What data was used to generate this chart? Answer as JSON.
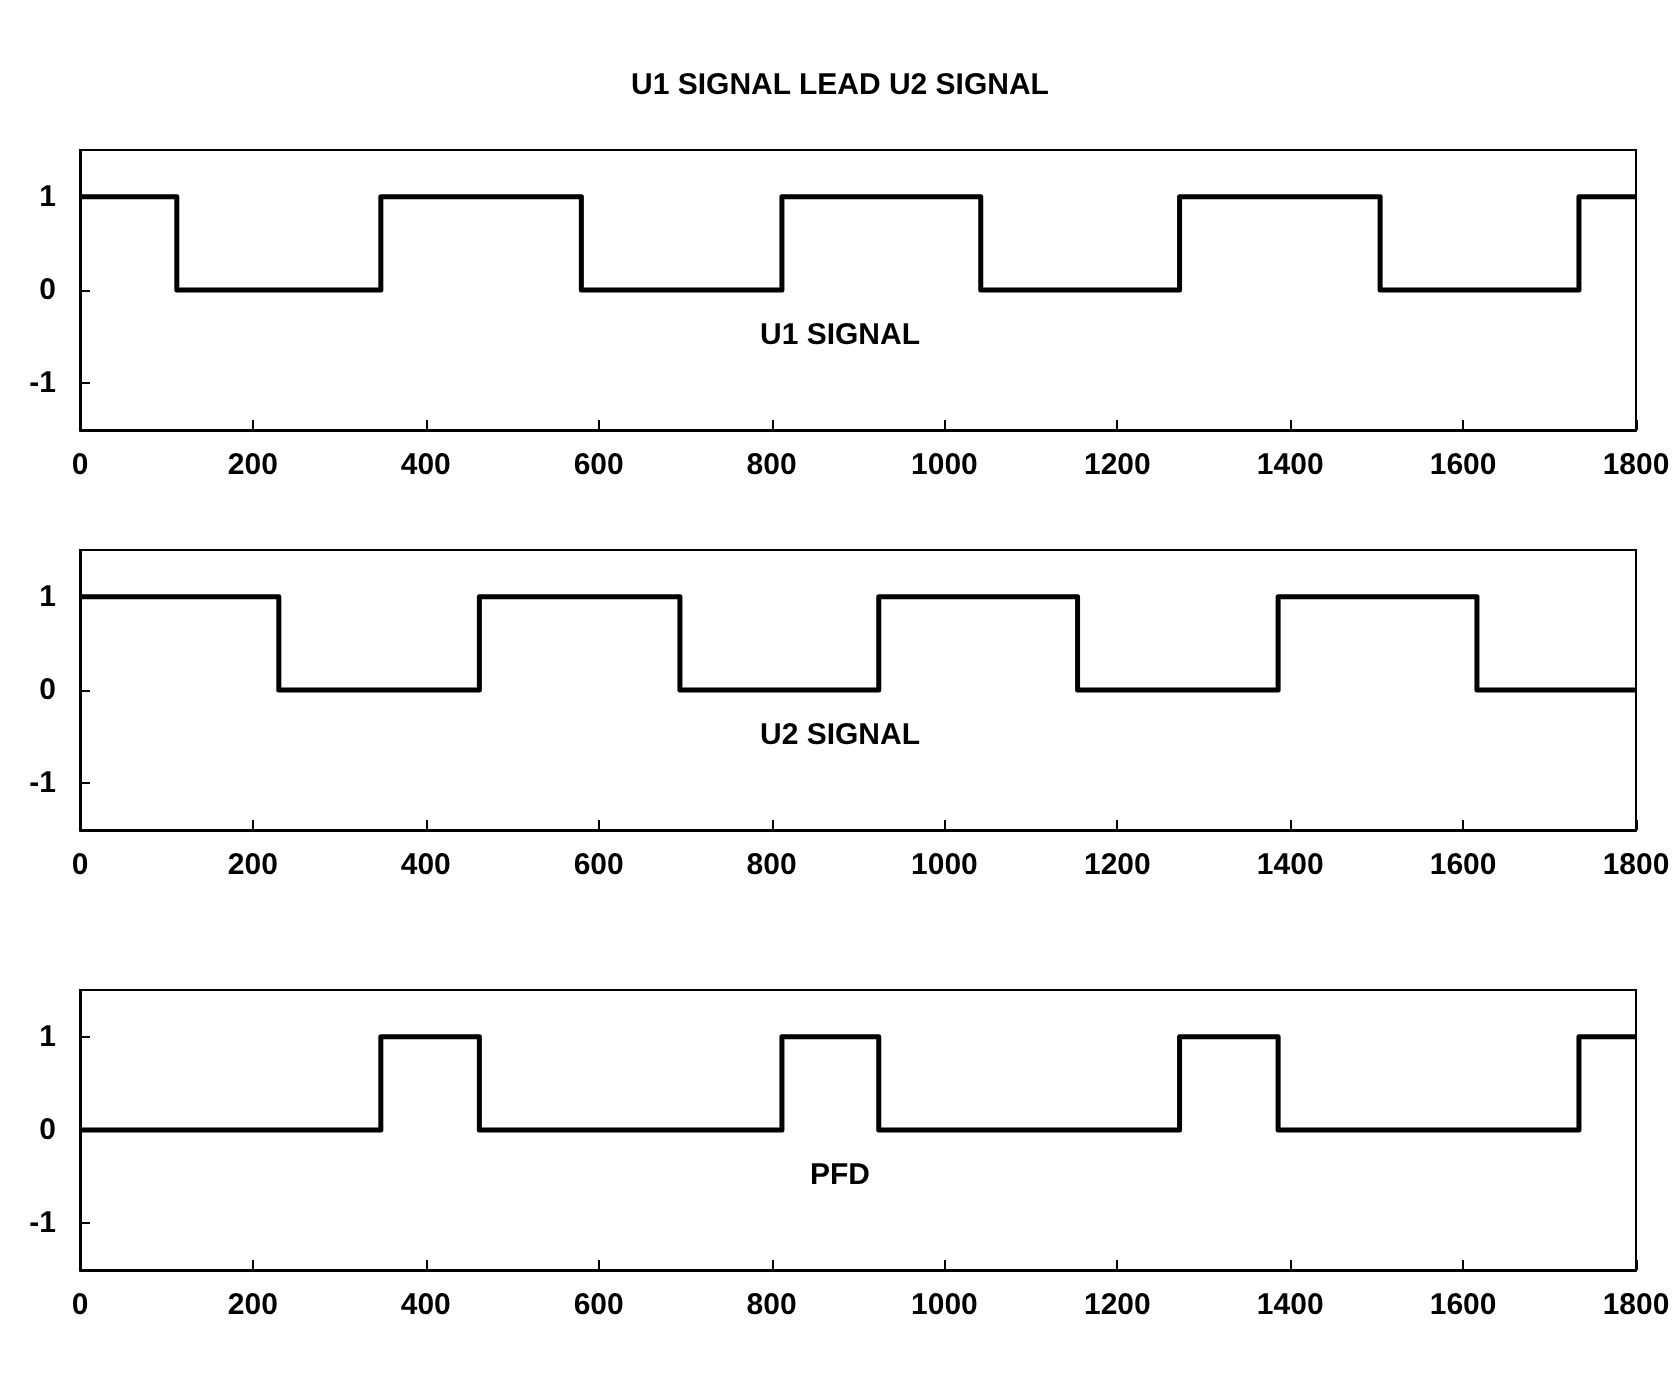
{
  "chart_data": [
    {
      "type": "step",
      "title": "U1 SIGNAL LEAD U2 SIGNAL",
      "annotations": [
        "U1 SIGNAL"
      ],
      "xlim": [
        0,
        1800
      ],
      "xticks": [
        0,
        200,
        400,
        600,
        800,
        1000,
        1200,
        1400,
        1600,
        1800
      ],
      "ylim": [
        -1.5,
        1.5
      ],
      "yticks": [
        -1,
        0,
        1
      ],
      "grid": false,
      "series": [
        {
          "color": "#000000",
          "x": [
            0,
            112,
            348,
            580,
            812,
            1042,
            1272,
            1504,
            1734,
            1800
          ],
          "values": [
            1,
            0,
            1,
            0,
            1,
            0,
            1,
            0,
            1,
            1
          ]
        }
      ]
    },
    {
      "type": "step",
      "annotations": [
        "U2 SIGNAL"
      ],
      "xlim": [
        0,
        1800
      ],
      "xticks": [
        0,
        200,
        400,
        600,
        800,
        1000,
        1200,
        1400,
        1600,
        1800
      ],
      "ylim": [
        -1.5,
        1.5
      ],
      "yticks": [
        -1,
        0,
        1
      ],
      "grid": false,
      "series": [
        {
          "color": "#000000",
          "x": [
            0,
            230,
            462,
            694,
            924,
            1154,
            1386,
            1616,
            1800
          ],
          "values": [
            1,
            0,
            1,
            0,
            1,
            0,
            1,
            0,
            0
          ]
        }
      ]
    },
    {
      "type": "step",
      "annotations": [
        "PFD"
      ],
      "xlim": [
        0,
        1800
      ],
      "xticks": [
        0,
        200,
        400,
        600,
        800,
        1000,
        1200,
        1400,
        1600,
        1800
      ],
      "ylim": [
        -1.5,
        1.5
      ],
      "yticks": [
        -1,
        0,
        1
      ],
      "grid": false,
      "series": [
        {
          "color": "#000000",
          "x": [
            0,
            348,
            462,
            812,
            924,
            1272,
            1386,
            1734,
            1800
          ],
          "values": [
            0,
            1,
            0,
            1,
            0,
            1,
            0,
            1,
            1
          ]
        }
      ]
    }
  ]
}
